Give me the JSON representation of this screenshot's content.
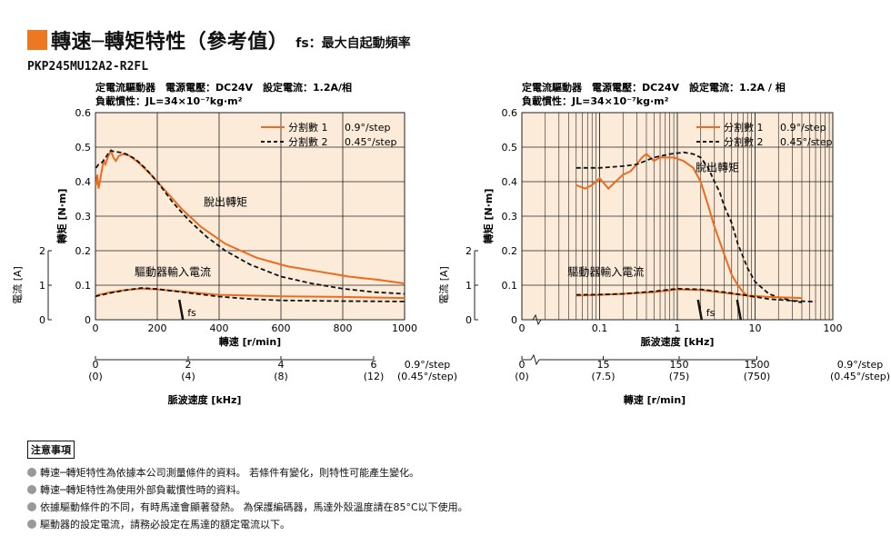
{
  "header": {
    "title": "轉速─轉矩特性（參考值）",
    "title_suffix": "fs：最大自起動頻率",
    "model": "PKP245MU12A2-R2FL"
  },
  "colors": {
    "accent": "#ee7722",
    "plot_bg": "#fcebd9",
    "step1_line": "#ee6a1c",
    "step2_line": "#111111"
  },
  "chart_data": [
    {
      "type": "line",
      "conditions": [
        "定電流驅動器　電源電壓：DC24V　設定電流：1.2A/相",
        "負載慣性：JL=34×10⁻⁷kg·m²"
      ],
      "ylabel": "轉矩 [N·m]",
      "ylim": [
        0,
        0.6
      ],
      "yticks": [
        "0",
        "0.1",
        "0.2",
        "0.3",
        "0.4",
        "0.5",
        "0.6"
      ],
      "ylabel2": "電流 [A]",
      "y2ticks": [
        "0",
        "1",
        "2"
      ],
      "xlabel": "轉速 [r/min]",
      "xlim": [
        0,
        1000
      ],
      "xticks": [
        "0",
        "200",
        "400",
        "600",
        "800",
        "1000"
      ],
      "x2label": "脈波速度 [kHz]",
      "x2ticks": [
        {
          "top": "0",
          "bottom": "(0)"
        },
        {
          "top": "2",
          "bottom": "(4)"
        },
        {
          "top": "4",
          "bottom": "(8)"
        },
        {
          "top": "6",
          "bottom": "(12)"
        }
      ],
      "x2_units": {
        "top": "0.9°/step",
        "bottom": "(0.45°/step)"
      },
      "legend": {
        "position": "top-right",
        "entries": [
          {
            "name": "分割數 1",
            "note": "0.9°/step"
          },
          {
            "name": "分割數 2",
            "note": "0.45°/step"
          }
        ]
      },
      "annotations": {
        "pullout": "脫出轉矩",
        "current": "驅動器輸入電流",
        "fs": "fs"
      },
      "series": [
        {
          "name": "分割數 1",
          "kind": "torque",
          "x": [
            2,
            6,
            10,
            14,
            18,
            22,
            26,
            32,
            40,
            50,
            58,
            66,
            76,
            90,
            110,
            140,
            180,
            230,
            280,
            340,
            420,
            520,
            620,
            720,
            820,
            920,
            1000
          ],
          "y": [
            0.39,
            0.42,
            0.38,
            0.4,
            0.42,
            0.44,
            0.46,
            0.45,
            0.47,
            0.49,
            0.47,
            0.46,
            0.475,
            0.48,
            0.475,
            0.455,
            0.42,
            0.37,
            0.32,
            0.27,
            0.22,
            0.18,
            0.155,
            0.14,
            0.125,
            0.115,
            0.105
          ]
        },
        {
          "name": "分割數 2",
          "kind": "torque",
          "x": [
            2,
            10,
            20,
            30,
            40,
            50,
            60,
            80,
            100,
            130,
            160,
            200,
            250,
            300,
            360,
            420,
            500,
            600,
            700,
            800,
            900,
            1000
          ],
          "y": [
            0.44,
            0.45,
            0.455,
            0.465,
            0.48,
            0.49,
            0.487,
            0.485,
            0.48,
            0.465,
            0.44,
            0.4,
            0.34,
            0.29,
            0.24,
            0.2,
            0.16,
            0.125,
            0.105,
            0.09,
            0.08,
            0.075
          ]
        },
        {
          "name": "分割數 1",
          "kind": "current",
          "x": [
            0,
            50,
            100,
            150,
            200,
            300,
            400,
            600,
            800,
            1000
          ],
          "y": [
            0.7,
            0.8,
            0.86,
            0.9,
            0.88,
            0.8,
            0.72,
            0.68,
            0.66,
            0.63
          ]
        },
        {
          "name": "分割數 2",
          "kind": "current",
          "x": [
            0,
            50,
            100,
            150,
            200,
            300,
            400,
            500,
            600,
            800,
            1000
          ],
          "y": [
            0.68,
            0.78,
            0.86,
            0.92,
            0.89,
            0.78,
            0.67,
            0.6,
            0.56,
            0.54,
            0.53
          ]
        }
      ]
    },
    {
      "type": "line",
      "conditions": [
        "定電流驅動器　電源電壓：DC24V　設定電流：1.2A / 相",
        "負載慣性：JL=34×10⁻⁷kg·m²"
      ],
      "ylabel": "轉矩 [N·m]",
      "ylim": [
        0,
        0.6
      ],
      "yticks": [
        "0",
        "0.1",
        "0.2",
        "0.3",
        "0.4",
        "0.5",
        "0.6"
      ],
      "ylabel2": "電流 [A]",
      "y2ticks": [
        "0",
        "1",
        "2"
      ],
      "xlabel": "脈波速度 [kHz]",
      "xscale": "log",
      "xlim": [
        0.01,
        100
      ],
      "xticks": [
        "0.1",
        "1",
        "10",
        "100"
      ],
      "x2label": "轉速 [r/min]",
      "x2ticks": [
        {
          "top": "0",
          "bottom": "(0)"
        },
        {
          "top": "15",
          "bottom": "(7.5)"
        },
        {
          "top": "150",
          "bottom": "(75)"
        },
        {
          "top": "1500",
          "bottom": "(750)"
        }
      ],
      "x2_units": {
        "top": "0.9°/step",
        "bottom": "(0.45°/step)"
      },
      "legend": {
        "position": "top-right",
        "entries": [
          {
            "name": "分割數 1",
            "note": "0.9°/step"
          },
          {
            "name": "分割數 2",
            "note": "0.45°/step"
          }
        ]
      },
      "annotations": {
        "pullout": "脫出轉矩",
        "current": "驅動器輸入電流",
        "fs": "fs"
      },
      "series": [
        {
          "name": "分割數 1",
          "kind": "torque",
          "x": [
            0.05,
            0.065,
            0.08,
            0.1,
            0.13,
            0.16,
            0.2,
            0.25,
            0.3,
            0.35,
            0.4,
            0.5,
            0.6,
            0.7,
            0.9,
            1.2,
            1.6,
            2,
            2.5,
            3,
            4,
            5,
            6,
            7,
            8,
            10
          ],
          "y": [
            0.39,
            0.38,
            0.39,
            0.41,
            0.38,
            0.4,
            0.42,
            0.43,
            0.45,
            0.47,
            0.48,
            0.46,
            0.47,
            0.47,
            0.47,
            0.46,
            0.44,
            0.4,
            0.33,
            0.27,
            0.19,
            0.13,
            0.1,
            0.08,
            0.07,
            0.065
          ]
        },
        {
          "name": "分割數 2",
          "kind": "torque",
          "x": [
            0.05,
            0.1,
            0.2,
            0.3,
            0.5,
            0.8,
            1.2,
            1.6,
            2,
            2.5,
            3,
            3.5,
            4,
            5,
            6,
            8,
            10,
            15,
            20,
            30,
            40
          ],
          "y": [
            0.44,
            0.44,
            0.445,
            0.45,
            0.47,
            0.48,
            0.485,
            0.48,
            0.47,
            0.44,
            0.4,
            0.37,
            0.33,
            0.28,
            0.22,
            0.15,
            0.11,
            0.075,
            0.065,
            0.055,
            0.05
          ]
        },
        {
          "name": "分割數 1",
          "kind": "current",
          "x": [
            0.05,
            0.1,
            0.2,
            0.5,
            1,
            2,
            4,
            8,
            15,
            40
          ],
          "y": [
            0.7,
            0.72,
            0.75,
            0.8,
            0.88,
            0.86,
            0.78,
            0.7,
            0.66,
            0.63
          ]
        },
        {
          "name": "分割數 2",
          "kind": "current",
          "x": [
            0.05,
            0.1,
            0.2,
            0.5,
            1,
            2,
            4,
            8,
            15,
            30,
            60
          ],
          "y": [
            0.72,
            0.73,
            0.75,
            0.82,
            0.9,
            0.88,
            0.8,
            0.7,
            0.6,
            0.55,
            0.52
          ]
        }
      ]
    }
  ],
  "notes": {
    "heading": "注意事項",
    "items": [
      "轉速─轉矩特性為依據本公司測量條件的資料。 若條件有變化，則特性可能產生變化。",
      "轉速─轉矩特性為使用外部負載慣性時的資料。",
      "依據驅動條件的不同，有時馬達會顯著發熱。 為保護編碼器，馬達外殼溫度請在85°C以下使用。",
      "驅動器的設定電流，請務必設定在馬達的額定電流以下。"
    ]
  }
}
